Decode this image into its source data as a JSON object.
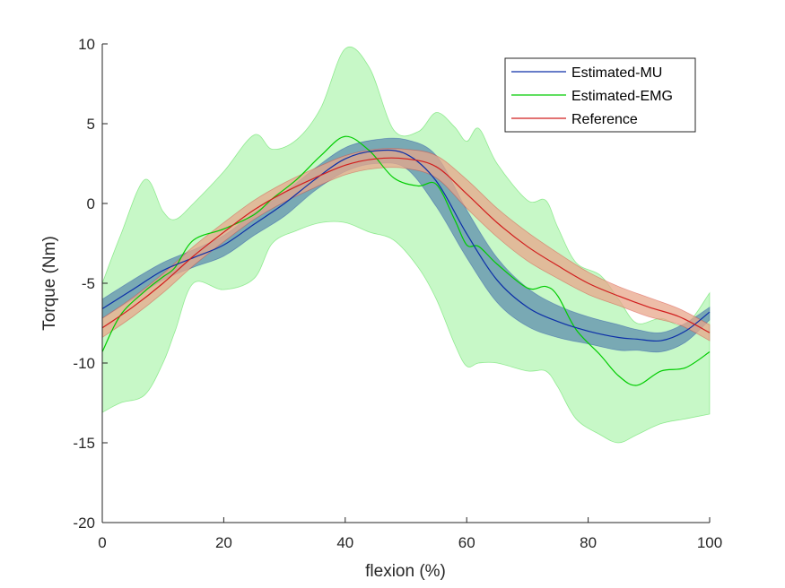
{
  "chart_data": {
    "type": "line",
    "xlabel": "flexion (%)",
    "ylabel": "Torque (Nm)",
    "xlim": [
      0,
      100
    ],
    "ylim": [
      -20,
      10
    ],
    "xticks": [
      0,
      20,
      40,
      60,
      80,
      100
    ],
    "yticks": [
      -20,
      -15,
      -10,
      -5,
      0,
      5,
      10
    ],
    "grid": false,
    "legend_position": "top-right",
    "series": [
      {
        "name": "Estimated-EMG",
        "color": "#00cc00",
        "band_color": "#bdf7bd",
        "x": [
          0,
          3,
          7,
          10,
          12,
          15,
          20,
          25,
          28,
          32,
          36,
          40,
          44,
          48,
          52,
          55,
          58,
          60,
          62,
          65,
          70,
          73,
          75,
          78,
          82,
          85,
          88,
          92,
          96,
          100
        ],
        "mean": [
          -9.3,
          -7.0,
          -5.5,
          -4.6,
          -4.0,
          -2.3,
          -1.6,
          -0.7,
          0.3,
          1.5,
          3.0,
          4.2,
          3.3,
          1.6,
          1.1,
          1.2,
          -1.0,
          -2.6,
          -2.7,
          -3.8,
          -5.3,
          -5.2,
          -5.8,
          -7.9,
          -9.5,
          -10.8,
          -11.4,
          -10.5,
          -10.3,
          -9.3
        ],
        "upper": [
          -5.0,
          -2.0,
          1.5,
          -0.5,
          -1.0,
          0.0,
          2.0,
          4.3,
          3.4,
          4.0,
          6.0,
          9.7,
          8.5,
          4.6,
          4.5,
          5.7,
          4.8,
          3.9,
          4.7,
          2.5,
          0.2,
          0.2,
          -1.5,
          -3.7,
          -4.5,
          -6.0,
          -7.5,
          -7.2,
          -7.6,
          -5.6
        ],
        "lower": [
          -13.1,
          -12.5,
          -12.0,
          -10.0,
          -8.0,
          -5.0,
          -5.4,
          -4.7,
          -2.5,
          -1.7,
          -1.2,
          -1.2,
          -1.8,
          -2.3,
          -4.0,
          -6.0,
          -8.8,
          -10.2,
          -10.0,
          -10.0,
          -10.5,
          -10.5,
          -11.5,
          -13.5,
          -14.5,
          -15.0,
          -14.5,
          -13.8,
          -13.5,
          -13.2
        ]
      },
      {
        "name": "Estimated-MU",
        "color": "#0c2fa8",
        "band_color": "#5f8fae",
        "x": [
          0,
          5,
          10,
          15,
          20,
          25,
          30,
          35,
          40,
          45,
          50,
          55,
          60,
          65,
          70,
          75,
          80,
          85,
          88,
          92,
          96,
          100
        ],
        "mean": [
          -6.6,
          -5.4,
          -4.2,
          -3.4,
          -2.6,
          -1.3,
          0.0,
          1.5,
          2.8,
          3.3,
          3.1,
          1.4,
          -1.9,
          -4.8,
          -6.5,
          -7.4,
          -8.0,
          -8.4,
          -8.5,
          -8.6,
          -8.0,
          -6.8
        ],
        "upper": [
          -6.0,
          -4.8,
          -3.7,
          -2.9,
          -2.0,
          -0.6,
          0.7,
          2.2,
          3.5,
          4.0,
          4.0,
          3.0,
          -0.4,
          -3.4,
          -5.3,
          -6.4,
          -7.1,
          -7.6,
          -7.9,
          -8.1,
          -7.5,
          -6.5
        ],
        "lower": [
          -7.2,
          -6.0,
          -4.8,
          -4.0,
          -3.3,
          -2.0,
          -0.8,
          0.8,
          2.0,
          2.5,
          2.2,
          -0.2,
          -3.4,
          -6.2,
          -7.7,
          -8.4,
          -8.8,
          -9.2,
          -9.2,
          -9.3,
          -8.7,
          -7.3
        ]
      },
      {
        "name": "Reference",
        "color": "#d11d1d",
        "band_color": "#e8a78b",
        "x": [
          0,
          5,
          10,
          15,
          20,
          25,
          30,
          35,
          40,
          45,
          50,
          55,
          60,
          65,
          70,
          75,
          80,
          85,
          90,
          95,
          100
        ],
        "mean": [
          -7.8,
          -6.5,
          -5.0,
          -3.3,
          -1.8,
          -0.4,
          0.7,
          1.6,
          2.4,
          2.8,
          2.8,
          2.3,
          0.6,
          -1.2,
          -2.7,
          -3.9,
          -5.0,
          -5.8,
          -6.5,
          -7.1,
          -8.1
        ],
        "upper": [
          -7.2,
          -5.9,
          -4.4,
          -2.7,
          -1.2,
          0.2,
          1.3,
          2.2,
          3.0,
          3.4,
          3.4,
          3.0,
          1.5,
          -0.3,
          -1.8,
          -3.1,
          -4.3,
          -5.2,
          -5.9,
          -6.6,
          -7.6
        ],
        "lower": [
          -8.4,
          -7.1,
          -5.6,
          -3.9,
          -2.4,
          -1.0,
          0.1,
          1.0,
          1.8,
          2.2,
          2.2,
          1.6,
          -0.3,
          -2.1,
          -3.6,
          -4.7,
          -5.7,
          -6.4,
          -7.1,
          -7.6,
          -8.6
        ]
      }
    ],
    "legend_order": [
      "Estimated-MU",
      "Estimated-EMG",
      "Reference"
    ]
  }
}
